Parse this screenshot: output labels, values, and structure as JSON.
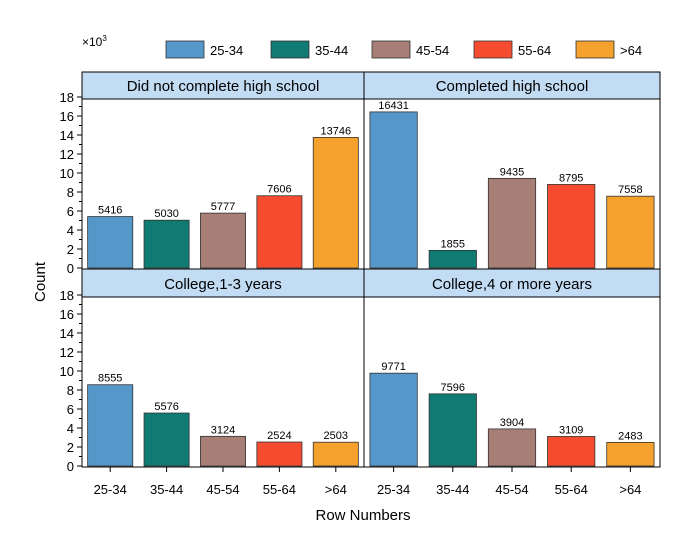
{
  "chart_data": {
    "type": "bar",
    "multiplier_label": "×10",
    "multiplier_exp": "3",
    "xlabel": "Row Numbers",
    "ylabel": "Count",
    "ylim": [
      0,
      18
    ],
    "yticks": [
      0,
      2,
      4,
      6,
      8,
      10,
      12,
      14,
      16,
      18
    ],
    "ytick_labels": [
      "0",
      "2",
      "4",
      "6",
      "8",
      "10",
      "12",
      "14",
      "16",
      "18"
    ],
    "unit_scale": 1000,
    "categories": [
      "25-34",
      "35-44",
      "45-54",
      "55-64",
      ">64"
    ],
    "colors": [
      "#5597c8",
      "#0f7b73",
      "#a87f76",
      "#f54b2f",
      "#f4a12d"
    ],
    "legend": {
      "position": "top",
      "entries": [
        "25-34",
        "35-44",
        "45-54",
        "55-64",
        ">64"
      ]
    },
    "panels": [
      {
        "title": "Did not complete high school",
        "values": [
          5416,
          5030,
          5777,
          7606,
          13746
        ]
      },
      {
        "title": "Completed high school",
        "values": [
          16431,
          1855,
          9435,
          8795,
          7558
        ]
      },
      {
        "title": "College,1-3 years",
        "values": [
          8555,
          5576,
          3124,
          2524,
          2503
        ]
      },
      {
        "title": "College,4 or more years",
        "values": [
          9771,
          7596,
          3904,
          3109,
          2483
        ]
      }
    ],
    "panel_header_color": "#c2dcf3",
    "grid": false
  }
}
